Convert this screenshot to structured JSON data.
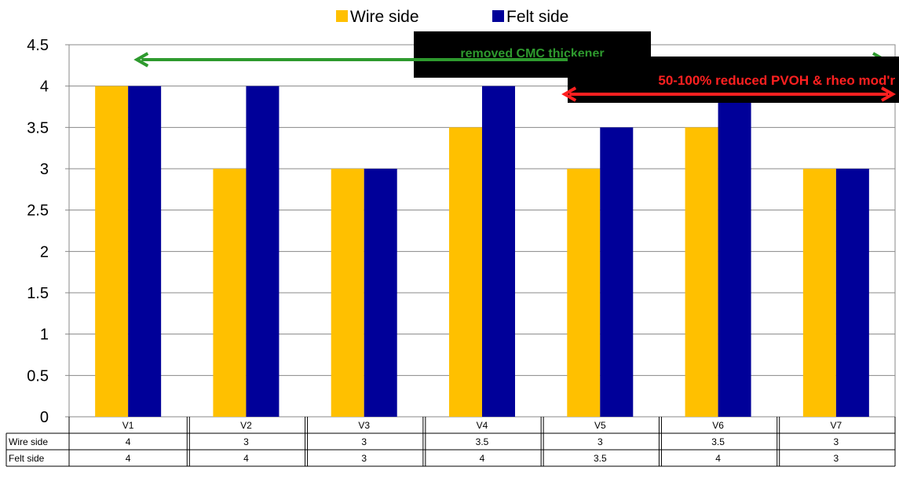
{
  "chart_data": {
    "type": "bar",
    "categories": [
      "V1",
      "V2",
      "V3",
      "V4",
      "V5",
      "V6",
      "V7"
    ],
    "series": [
      {
        "name": "Wire side",
        "values": [
          4,
          3,
          3,
          3.5,
          3,
          3.5,
          3
        ],
        "color": "#FFC000"
      },
      {
        "name": "Felt side",
        "values": [
          4,
          4,
          3,
          4,
          3.5,
          4,
          3
        ],
        "color": "#000099"
      }
    ],
    "yticks": [
      "0",
      "0.5",
      "1",
      "1.5",
      "2",
      "2.5",
      "3",
      "3.5",
      "4",
      "4.5"
    ],
    "ylim": [
      0,
      4.5
    ],
    "grid": true,
    "legend": "top-center",
    "data_table": {
      "rows": [
        {
          "label": "Wire side",
          "cells": [
            "4",
            "3",
            "3",
            "3.5",
            "3",
            "3.5",
            "3"
          ]
        },
        {
          "label": "Felt side",
          "cells": [
            "4",
            "4",
            "3",
            "4",
            "3.5",
            "4",
            "3"
          ]
        }
      ]
    },
    "annotations": [
      {
        "text": "removed CMC thickener",
        "color": "#2e9a2e",
        "from": "V2",
        "to": "V7"
      },
      {
        "text": "50-100% reduced PVOH &   rheo mod'r",
        "color": "#ff2020",
        "from": "V5",
        "to": "V7"
      }
    ]
  }
}
